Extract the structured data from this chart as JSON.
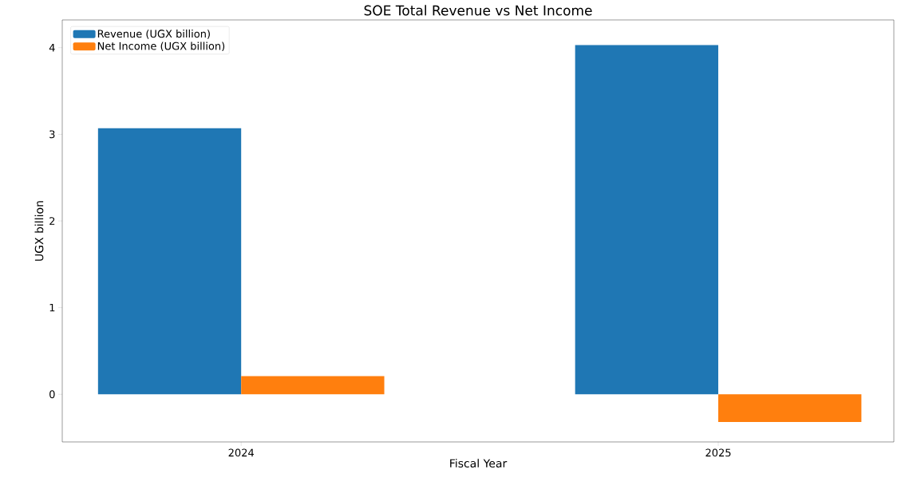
{
  "chart_data": {
    "type": "bar",
    "title": "SOE Total Revenue vs Net Income",
    "xlabel": "Fiscal Year",
    "ylabel": "UGX billion",
    "categories": [
      "2024",
      "2025"
    ],
    "series": [
      {
        "name": "Revenue (UGX billion)",
        "color": "#1f77b4",
        "values": [
          3.07,
          4.03
        ]
      },
      {
        "name": "Net Income (UGX billion)",
        "color": "#ff7f0e",
        "values": [
          0.21,
          -0.32
        ]
      }
    ],
    "ylim": [
      -0.55,
      4.32
    ],
    "yticks": [
      0,
      1,
      2,
      3,
      4
    ],
    "legend": "top left"
  }
}
